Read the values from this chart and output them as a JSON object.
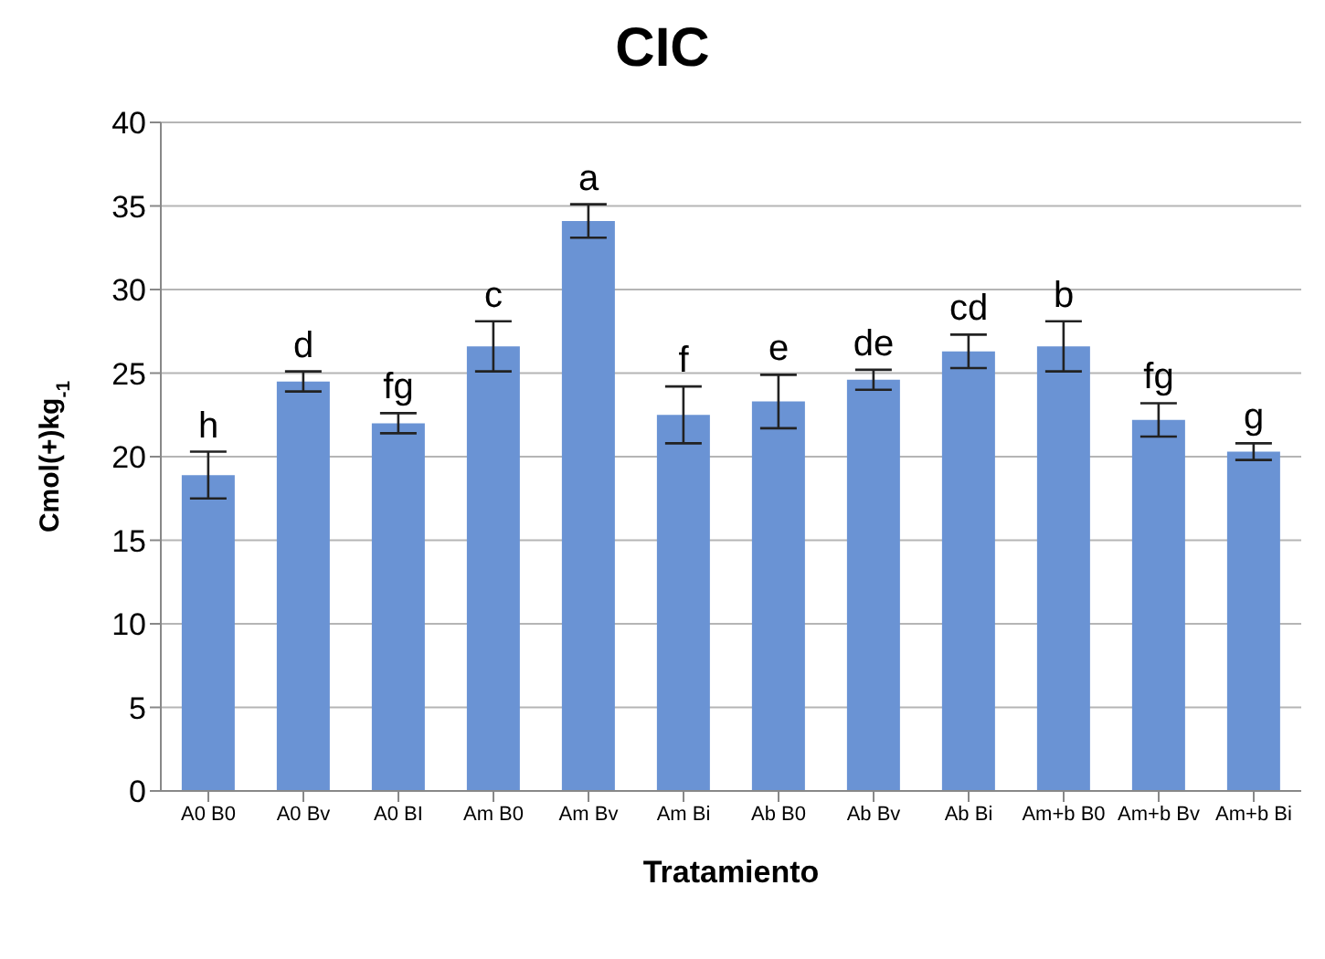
{
  "chart_data": {
    "type": "bar",
    "title": "CIC",
    "xlabel": "Tratamiento",
    "ylabel": "Cmol(+)kg$_{-1}$",
    "categories": [
      "A0 B0",
      "A0 Bv",
      "A0  BI",
      "Am B0",
      "Am Bv",
      "Am Bi",
      "Ab B0",
      "Ab Bv",
      "Ab  Bi",
      "Am+b B0",
      "Am+b Bv",
      "Am+b Bi"
    ],
    "values": [
      18.9,
      24.5,
      22.0,
      26.6,
      34.1,
      22.5,
      23.3,
      24.6,
      26.3,
      26.6,
      22.2,
      20.3
    ],
    "errors": [
      1.4,
      0.6,
      0.6,
      1.5,
      1.0,
      1.7,
      1.6,
      0.6,
      1.0,
      1.5,
      1.0,
      0.5
    ],
    "color": "#6a93d4",
    "ylim": [
      0,
      40
    ],
    "yticks": [
      0,
      5,
      10,
      15,
      20,
      25,
      30,
      35,
      40
    ],
    "grid": "y",
    "legend": false,
    "annotations": [
      {
        "text": "h",
        "x": "A0 B0",
        "y": 20.3
      },
      {
        "text": "d",
        "x": "A0 Bv",
        "y": 25.1
      },
      {
        "text": "fg",
        "x": "A0  BI",
        "y": 22.6
      },
      {
        "text": "c",
        "x": "Am B0",
        "y": 28.1
      },
      {
        "text": "a",
        "x": "Am Bv",
        "y": 35.1
      },
      {
        "text": "f",
        "x": "Am Bi",
        "y": 24.2
      },
      {
        "text": "e",
        "x": "Ab B0",
        "y": 24.9
      },
      {
        "text": "de",
        "x": "Ab Bv",
        "y": 25.2
      },
      {
        "text": "cd",
        "x": "Ab  Bi",
        "y": 27.3
      },
      {
        "text": "b",
        "x": "Am+b B0",
        "y": 28.1
      },
      {
        "text": "fg",
        "x": "Am+b Bv",
        "y": 23.2
      },
      {
        "text": "g",
        "x": "Am+b Bi",
        "y": 20.8
      }
    ]
  }
}
